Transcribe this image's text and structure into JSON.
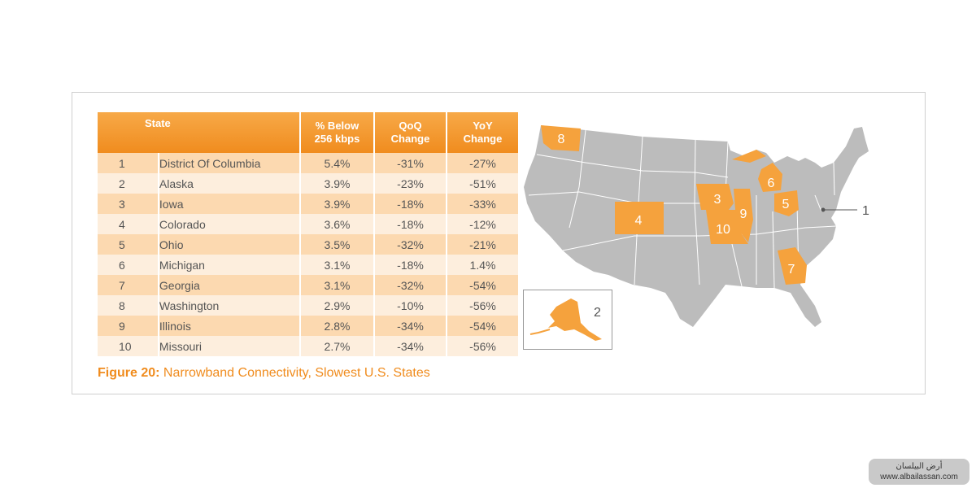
{
  "table": {
    "headers": {
      "state": "State",
      "below_line1": "% Below",
      "below_line2": "256 kbps",
      "qoq_line1": "QoQ",
      "qoq_line2": "Change",
      "yoy_line1": "YoY",
      "yoy_line2": "Change"
    },
    "rows": [
      {
        "rank": "1",
        "state": "District Of Columbia",
        "below": "5.4%",
        "qoq": "-31%",
        "yoy": "-27%"
      },
      {
        "rank": "2",
        "state": "Alaska",
        "below": "3.9%",
        "qoq": "-23%",
        "yoy": "-51%"
      },
      {
        "rank": "3",
        "state": "Iowa",
        "below": "3.9%",
        "qoq": "-18%",
        "yoy": "-33%"
      },
      {
        "rank": "4",
        "state": "Colorado",
        "below": "3.6%",
        "qoq": "-18%",
        "yoy": "-12%"
      },
      {
        "rank": "5",
        "state": "Ohio",
        "below": "3.5%",
        "qoq": "-32%",
        "yoy": "-21%"
      },
      {
        "rank": "6",
        "state": "Michigan",
        "below": "3.1%",
        "qoq": "-18%",
        "yoy": "1.4%"
      },
      {
        "rank": "7",
        "state": "Georgia",
        "below": "3.1%",
        "qoq": "-32%",
        "yoy": "-54%"
      },
      {
        "rank": "8",
        "state": "Washington",
        "below": "2.9%",
        "qoq": "-10%",
        "yoy": "-56%"
      },
      {
        "rank": "9",
        "state": "Illinois",
        "below": "2.8%",
        "qoq": "-34%",
        "yoy": "-54%"
      },
      {
        "rank": "10",
        "state": "Missouri",
        "below": "2.7%",
        "qoq": "-34%",
        "yoy": "-56%"
      }
    ]
  },
  "caption": {
    "label": "Figure 20:",
    "text": " Narrowband Connectivity, Slowest U.S. States"
  },
  "map": {
    "labels": {
      "washington": "8",
      "colorado": "4",
      "iowa": "3",
      "illinois": "9",
      "missouri": "10",
      "michigan": "6",
      "ohio": "5",
      "georgia": "7",
      "dc_callout": "1",
      "alaska_callout": "2"
    },
    "highlight_color": "#f5a23d",
    "base_color": "#bcbcbc"
  },
  "watermark": {
    "line1": "أرض البيلسان",
    "line2": "www.albailassan.com"
  }
}
